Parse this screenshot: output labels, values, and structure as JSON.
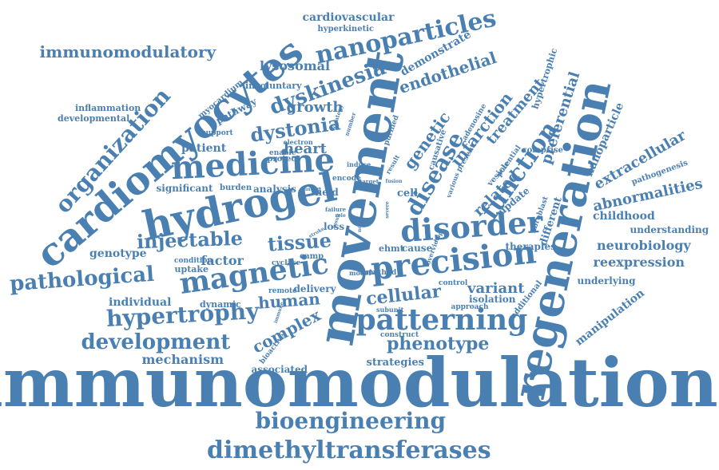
{
  "colors": {
    "word": "#4a7fb2",
    "background": "#ffffff"
  },
  "words": [
    "immunomodulation",
    "movement",
    "regeneration",
    "cardiomyocytes",
    "hydrogel",
    "precision",
    "disorder",
    "medicine",
    "magnetic",
    "patterning",
    "nanoparticles",
    "pathological",
    "hypertrophy",
    "development",
    "bioengineering",
    "dimethyltransferases",
    "injectable",
    "tissue",
    "organization",
    "function",
    "disease",
    "dystonia",
    "dyskinesia",
    "immunomodulatory",
    "complex",
    "cellular",
    "phenotype",
    "abnormalities",
    "extracellular",
    "infarction",
    "genetic",
    "endothelial",
    "treatment",
    "related",
    "human",
    "neurobiology",
    "reexpression",
    "heart",
    "growth",
    "variant",
    "mechanism",
    "factor",
    "patient",
    "genotype",
    "individual",
    "lysosomal",
    "demonstrate",
    "preferential",
    "childhood",
    "cardiovascular",
    "hyperkinetic",
    "manipulation",
    "nanoparticle",
    "different",
    "understanding",
    "underlying",
    "strategies",
    "associated",
    "significant",
    "analysis",
    "loss",
    "uptake",
    "therapies",
    "isolation",
    "cell",
    "update",
    "pathway",
    "involuntary",
    "myocardium",
    "inflammation",
    "developmental",
    "dynamic",
    "additional",
    "pathogenesis",
    "hypertrophic",
    "comprise",
    "cause",
    "ehmt",
    "vesicle",
    "fibroblast",
    "protect",
    "delivery",
    "remote",
    "support",
    "bioactive",
    "cyclase",
    "camp",
    "burden",
    "field",
    "condition",
    "approach",
    "control",
    "enable",
    "construct",
    "model",
    "purified",
    "causative",
    "adenosine",
    "present",
    "electron",
    "strategy",
    "number",
    "result",
    "induce",
    "potential",
    "encode",
    "target",
    "fetal",
    "method",
    "subunit",
    "overview",
    "immune",
    "hop",
    "failure",
    "intact",
    "fusion",
    "various",
    "insult",
    "role",
    "novel",
    "stroke",
    "severe",
    "defect",
    "tract",
    "surgery"
  ]
}
